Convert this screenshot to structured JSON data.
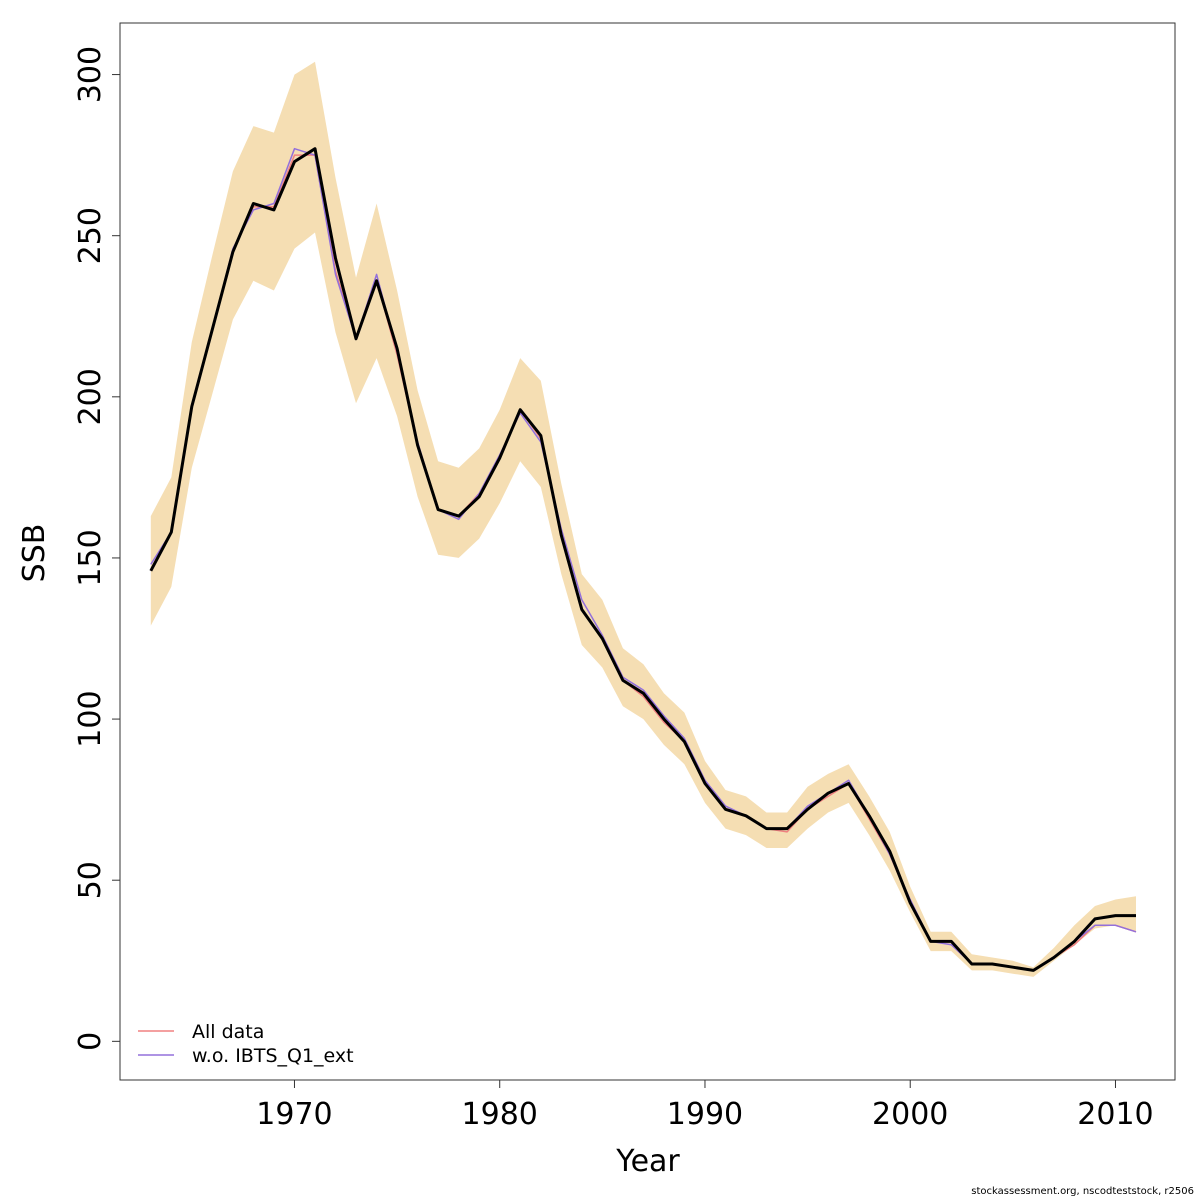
{
  "chart_data": {
    "type": "line",
    "xlabel": "Year",
    "ylabel": "SSB",
    "xlim": [
      1961.5,
      2012.9
    ],
    "ylim": [
      -12,
      316
    ],
    "xticks": [
      1970,
      1980,
      1990,
      2000,
      2010
    ],
    "yticks": [
      0,
      50,
      100,
      150,
      200,
      250,
      300
    ],
    "grid": false,
    "legend_position": "bottom-left",
    "x": [
      1963,
      1964,
      1965,
      1966,
      1967,
      1968,
      1969,
      1970,
      1971,
      1972,
      1973,
      1974,
      1975,
      1976,
      1977,
      1978,
      1979,
      1980,
      1981,
      1982,
      1983,
      1984,
      1985,
      1986,
      1987,
      1988,
      1989,
      1990,
      1991,
      1992,
      1993,
      1994,
      1995,
      1996,
      1997,
      1998,
      1999,
      2000,
      2001,
      2002,
      2003,
      2004,
      2005,
      2006,
      2007,
      2008,
      2009,
      2010,
      2011
    ],
    "band": {
      "color": "#F5DEB3",
      "lower": [
        129,
        141,
        178,
        201,
        224,
        236,
        233,
        246,
        251,
        220,
        198,
        212,
        194,
        169,
        151,
        150,
        156,
        167,
        180,
        172,
        145,
        123,
        116,
        104,
        100,
        92,
        86,
        74,
        66,
        64,
        60,
        60,
        66,
        71,
        74,
        64,
        53,
        40,
        28,
        28,
        22,
        22,
        21,
        20,
        25,
        30,
        35,
        36,
        34
      ],
      "upper": [
        163,
        175,
        217,
        244,
        270,
        284,
        282,
        300,
        304,
        268,
        237,
        260,
        233,
        202,
        180,
        178,
        184,
        196,
        212,
        205,
        173,
        145,
        137,
        122,
        117,
        108,
        102,
        87,
        78,
        76,
        71,
        71,
        79,
        83,
        86,
        76,
        65,
        48,
        34,
        34,
        27,
        26,
        25,
        23,
        29,
        36,
        42,
        44,
        45
      ]
    },
    "series": [
      {
        "name": "All data",
        "color": "#F08080",
        "width": 1.5,
        "values": [
          146,
          158,
          197,
          221,
          245,
          259,
          259,
          275,
          275,
          239,
          218,
          236,
          213,
          185,
          165,
          163,
          170,
          181,
          196,
          187,
          158,
          134,
          125,
          112,
          107,
          99,
          93,
          80,
          72,
          70,
          66,
          65,
          72,
          76,
          80,
          69,
          58,
          43,
          31,
          31,
          24,
          24,
          23,
          22,
          26,
          30,
          36,
          36,
          34
        ]
      },
      {
        "name": "w.o. IBTS_Q1_ext",
        "color": "#9370DB",
        "width": 1.5,
        "values": [
          148,
          158,
          197,
          221,
          246,
          258,
          260,
          277,
          275,
          238,
          218,
          238,
          214,
          186,
          165,
          162,
          170,
          182,
          195,
          186,
          159,
          137,
          126,
          113,
          109,
          101,
          94,
          81,
          73,
          70,
          66,
          66,
          73,
          77,
          81,
          70,
          58,
          44,
          31,
          30,
          24,
          24,
          23,
          22,
          26,
          31,
          36,
          36,
          34
        ]
      },
      {
        "name": "",
        "color": "#000000",
        "width": 3,
        "values": [
          146,
          158,
          197,
          221,
          245,
          260,
          258,
          273,
          277,
          243,
          218,
          236,
          215,
          185,
          165,
          163,
          169,
          181,
          196,
          188,
          157,
          134,
          125,
          112,
          108,
          100,
          93,
          80,
          72,
          70,
          66,
          66,
          72,
          77,
          80,
          70,
          59,
          43,
          31,
          31,
          24,
          24,
          23,
          22,
          26,
          31,
          38,
          39,
          39
        ]
      }
    ]
  },
  "footer": "stockassessment.org, nscodteststock, r2506"
}
